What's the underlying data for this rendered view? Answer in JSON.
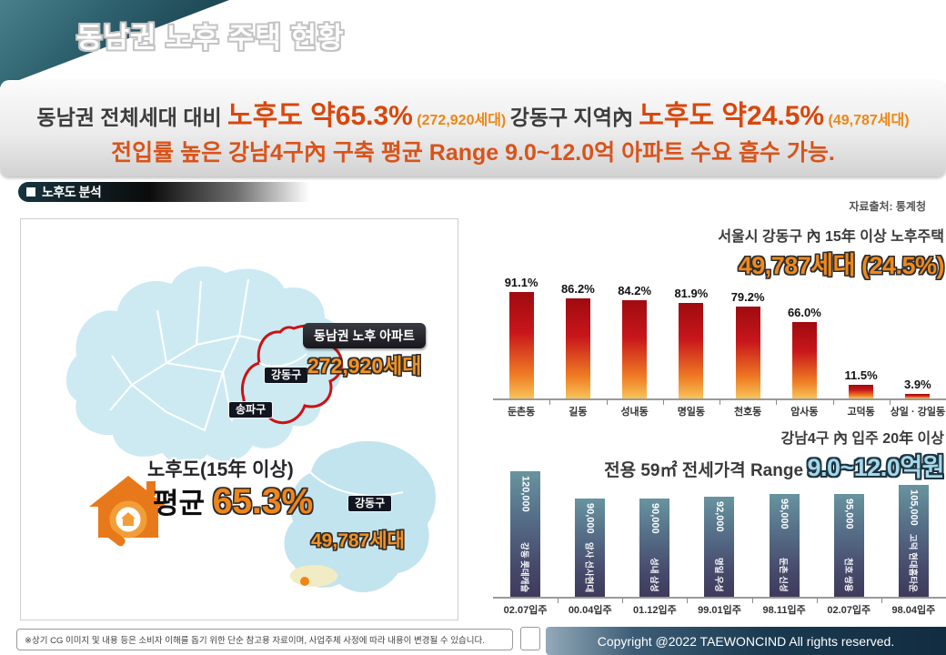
{
  "page": {
    "title": "동남권 노후 주택 현황"
  },
  "headline": {
    "line1": {
      "s1": "동남권 전체세대 대비 ",
      "s2": "노후도 약65.3%",
      "s3": " (272,920세대) ",
      "s4": "강동구 지역內 ",
      "s5": "노후도 약24.5%",
      "s6": " (49,787세대)"
    },
    "line2": {
      "text": "전입률 높은 강남4구內 구축 평균 Range 9.0~12.0억 아파트 수요 흡수 가능."
    }
  },
  "section": {
    "label": "노후도 분석"
  },
  "source_note": "자료출처: 통계청",
  "map": {
    "label_gangdong": "강동구",
    "label_songpa": "송파구",
    "callout_title": "동남권 노후 아파트",
    "callout_value": "272,920세대",
    "aging_title": "노후도(15年 이상)",
    "aging_prefix": "평균 ",
    "aging_value": "65.3%",
    "inset_label": "강동구",
    "inset_value": "49,787세대"
  },
  "chart_data": [
    {
      "type": "bar",
      "title": "서울시 강동구 內 15年 이상 노후주택",
      "highlight": "49,787세대 (24.5%)",
      "categories": [
        "둔촌동",
        "길동",
        "성내동",
        "명일동",
        "천호동",
        "암사동",
        "고덕동",
        "상일 · 강일동"
      ],
      "values": [
        91.1,
        86.2,
        84.2,
        81.9,
        79.2,
        66.0,
        11.5,
        3.9
      ],
      "value_labels": [
        "91.1%",
        "86.2%",
        "84.2%",
        "81.9%",
        "79.2%",
        "66.0%",
        "11.5%",
        "3.9%"
      ],
      "unit": "%",
      "ylim": [
        0,
        100
      ],
      "grid": false,
      "bar_color_top": "#9e0b0f",
      "bar_color_bottom": "#f7c35a"
    },
    {
      "type": "bar",
      "title": "강남4구 內 입주 20年 이상",
      "subtitle": "전용 59㎡ 전세가격 Range",
      "highlight": "9.0~12.0억원",
      "categories": [
        "02.07입주",
        "00.04입주",
        "01.12입주",
        "99.01입주",
        "98.11입주",
        "02.07입주",
        "98.04입주"
      ],
      "values": [
        120000,
        90000,
        90000,
        92000,
        95000,
        95000,
        105000
      ],
      "value_labels": [
        "120,000",
        "90,000",
        "90,000",
        "92,000",
        "95,000",
        "95,000",
        "105,000"
      ],
      "bar_names": [
        "강동 롯데캐슬",
        "암사 선사현대",
        "성내 삼성",
        "명일 우성",
        "둔촌 신성",
        "천호 쌍용",
        "고덕 현대홈타운"
      ],
      "grid": false,
      "bar_color_top": "#68949f",
      "bar_color_bottom": "#3e3a5c"
    }
  ],
  "footer": {
    "disclaimer": "※상기 CG 이미지 및 내용 등은 소비자 이해를 돕기 위한 단순 참고용 자료이며, 사업주체 사정에 따라 내용이 변경될 수 있습니다.",
    "copyright": "Copyright @2022 TAEWONCIND All rights reserved."
  }
}
